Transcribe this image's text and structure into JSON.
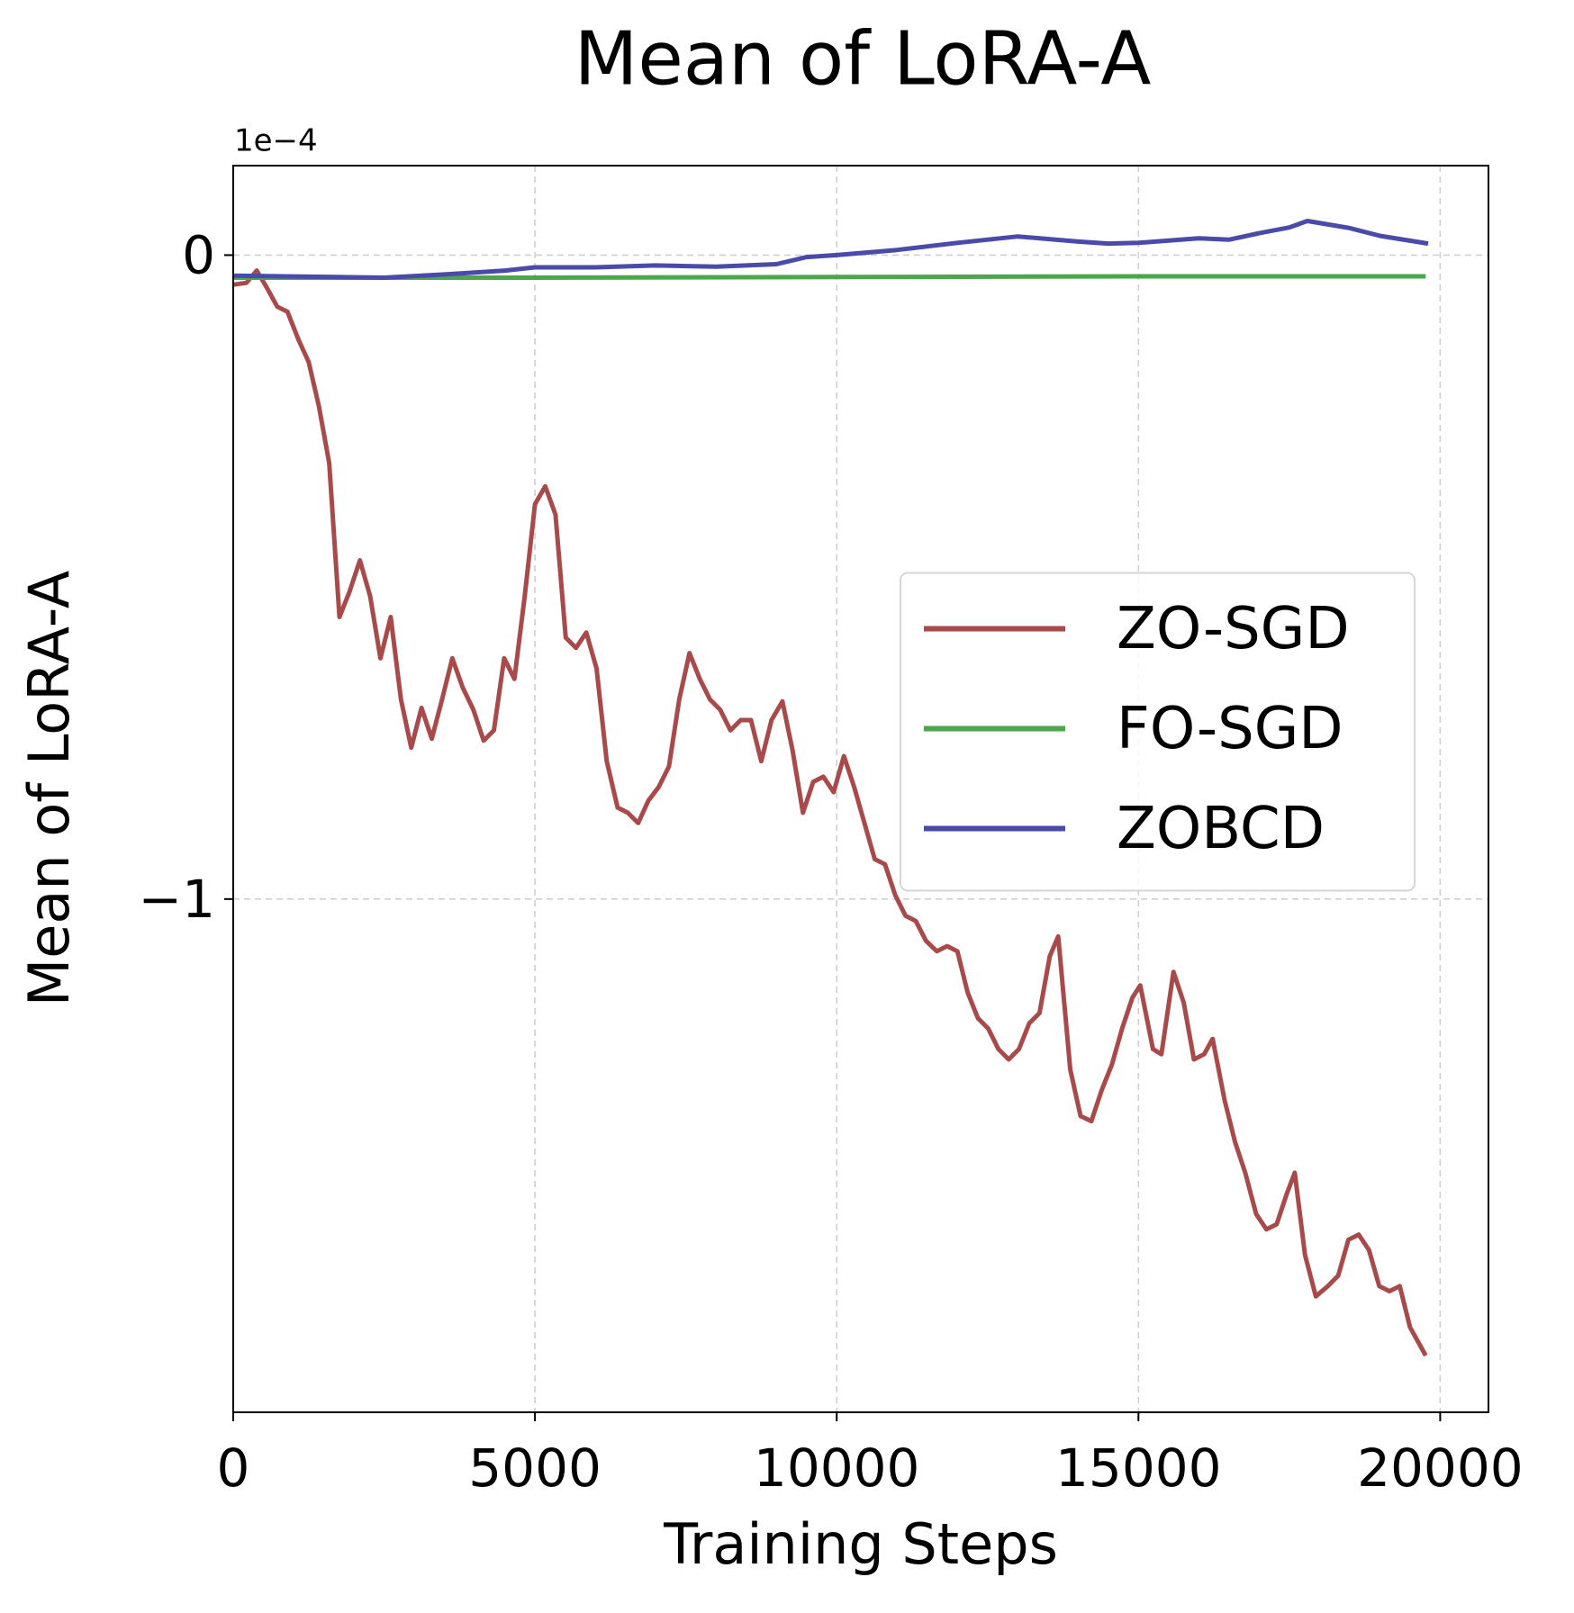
{
  "chart_data": {
    "type": "line",
    "title": "Mean of LoRA-A",
    "x_label": "Training Steps",
    "y_label": "Mean of LoRA-A",
    "y_offset_label": "1e−4",
    "xlim": [
      0,
      20800
    ],
    "xticks": [
      0,
      5000,
      10000,
      15000,
      20000
    ],
    "ylim": [
      -1.797,
      0.139
    ],
    "yticks": [
      0,
      {
        "value": -1,
        "label": "−1"
      }
    ],
    "grid": true,
    "legend": "center right",
    "series": [
      {
        "name": "ZO-SGD",
        "color": "#a94a4a",
        "x": [
          0,
          220,
          390,
          560,
          730,
          900,
          1080,
          1250,
          1420,
          1590,
          1760,
          1930,
          2100,
          2270,
          2440,
          2610,
          2780,
          2950,
          3120,
          3290,
          3460,
          3630,
          3800,
          3980,
          4150,
          4320,
          4490,
          4660,
          4830,
          5000,
          5170,
          5340,
          5510,
          5680,
          5850,
          6020,
          6190,
          6370,
          6540,
          6710,
          6880,
          7050,
          7220,
          7390,
          7560,
          7730,
          7900,
          8070,
          8240,
          8410,
          8580,
          8750,
          8920,
          9100,
          9270,
          9440,
          9610,
          9780,
          9950,
          10120,
          10290,
          10460,
          10630,
          10800,
          10970,
          11140,
          11310,
          11480,
          11660,
          11830,
          12000,
          12170,
          12340,
          12510,
          12680,
          12850,
          13020,
          13190,
          13360,
          13530,
          13670,
          13870,
          14040,
          14220,
          14390,
          14560,
          14730,
          14900,
          15030,
          15240,
          15380,
          15580,
          15750,
          15920,
          16090,
          16230,
          16430,
          16600,
          16770,
          16950,
          17120,
          17290,
          17460,
          17590,
          17760,
          17940,
          18140,
          18310,
          18480,
          18650,
          18820,
          18990,
          19160,
          19330,
          19500,
          19760
        ],
        "values": [
          -0.046,
          -0.043,
          -0.024,
          -0.051,
          -0.08,
          -0.088,
          -0.131,
          -0.166,
          -0.235,
          -0.323,
          -0.562,
          -0.522,
          -0.474,
          -0.53,
          -0.626,
          -0.562,
          -0.69,
          -0.765,
          -0.703,
          -0.751,
          -0.69,
          -0.626,
          -0.671,
          -0.706,
          -0.754,
          -0.738,
          -0.626,
          -0.658,
          -0.53,
          -0.387,
          -0.359,
          -0.403,
          -0.594,
          -0.61,
          -0.586,
          -0.642,
          -0.786,
          -0.858,
          -0.866,
          -0.882,
          -0.847,
          -0.826,
          -0.794,
          -0.69,
          -0.618,
          -0.658,
          -0.69,
          -0.706,
          -0.738,
          -0.722,
          -0.722,
          -0.786,
          -0.722,
          -0.693,
          -0.77,
          -0.866,
          -0.818,
          -0.81,
          -0.834,
          -0.778,
          -0.826,
          -0.882,
          -0.938,
          -0.946,
          -0.994,
          -1.026,
          -1.034,
          -1.065,
          -1.081,
          -1.073,
          -1.081,
          -1.145,
          -1.185,
          -1.201,
          -1.233,
          -1.249,
          -1.233,
          -1.193,
          -1.177,
          -1.089,
          -1.058,
          -1.265,
          -1.337,
          -1.345,
          -1.297,
          -1.257,
          -1.201,
          -1.153,
          -1.134,
          -1.233,
          -1.241,
          -1.113,
          -1.161,
          -1.249,
          -1.241,
          -1.217,
          -1.313,
          -1.377,
          -1.425,
          -1.489,
          -1.513,
          -1.505,
          -1.457,
          -1.425,
          -1.553,
          -1.617,
          -1.601,
          -1.585,
          -1.529,
          -1.521,
          -1.545,
          -1.601,
          -1.609,
          -1.601,
          -1.665,
          -1.709
        ]
      },
      {
        "name": "FO-SGD",
        "color": "#4ca64c",
        "x": [
          0,
          5000,
          10000,
          15000,
          19760
        ],
        "values": [
          -0.035,
          -0.035,
          -0.034,
          -0.033,
          -0.033
        ]
      },
      {
        "name": "ZOBCD",
        "color": "#4a4aaa",
        "x": [
          0,
          2500,
          3500,
          4500,
          5000,
          6000,
          7000,
          8000,
          9000,
          9500,
          10000,
          11000,
          12000,
          13000,
          14000,
          14500,
          15000,
          16000,
          16500,
          17000,
          17500,
          17800,
          18500,
          19000,
          19800
        ],
        "values": [
          -0.032,
          -0.035,
          -0.03,
          -0.024,
          -0.019,
          -0.019,
          -0.016,
          -0.018,
          -0.014,
          -0.003,
          0,
          0.008,
          0.019,
          0.029,
          0.021,
          0.018,
          0.019,
          0.026,
          0.024,
          0.034,
          0.043,
          0.053,
          0.042,
          0.03,
          0.018
        ]
      }
    ]
  }
}
